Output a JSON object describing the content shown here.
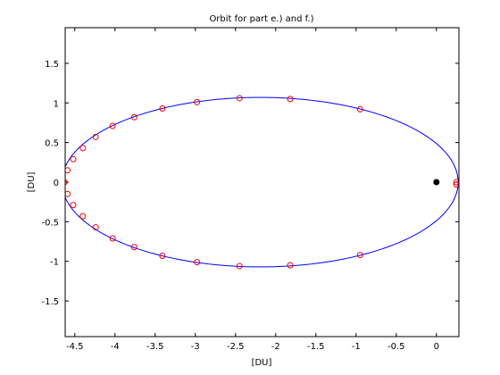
{
  "chart_data": {
    "type": "line",
    "title": "Orbit for part e.) and f.)",
    "xlabel": "[DU]",
    "ylabel": "[DU]",
    "xlim": [
      -4.62,
      0.28
    ],
    "ylim": [
      -1.95,
      1.95
    ],
    "xticks": [
      -4.5,
      -4,
      -3.5,
      -3,
      -2.5,
      -2,
      -1.5,
      -1,
      -0.5,
      0
    ],
    "xtick_labels": [
      "-4.5",
      "-4",
      "-3.5",
      "-3",
      "-2.5",
      "-2",
      "-1.5",
      "-1",
      "-0.5",
      "0"
    ],
    "yticks": [
      -1.5,
      -1,
      -0.5,
      0,
      0.5,
      1,
      1.5
    ],
    "ytick_labels": [
      "-1.5",
      "-1",
      "-0.5",
      "0",
      "0.5",
      "1",
      "1.5"
    ],
    "grid": false,
    "legend": "none",
    "series": [
      {
        "kind": "line",
        "color": "#0000ff",
        "ellipse": {
          "center_x": -2.195,
          "center_y": 0,
          "semi_major": 2.465,
          "semi_minor": 1.07
        }
      },
      {
        "kind": "markers",
        "marker": "circle",
        "color": "#ff0000",
        "x": [
          0.248,
          -0.95,
          -1.82,
          -2.45,
          -2.98,
          -3.41,
          -3.76,
          -4.03,
          -4.24,
          -4.4,
          -4.52,
          -4.59,
          -4.63,
          -4.63,
          -4.59,
          -4.52,
          -4.4,
          -4.24,
          -4.03,
          -3.76,
          -3.41,
          -2.98,
          -2.45,
          -1.82,
          -0.95,
          0.248
        ],
        "y": [
          0.0,
          0.92,
          1.05,
          1.06,
          1.01,
          0.93,
          0.82,
          0.71,
          0.57,
          0.43,
          0.29,
          0.15,
          0.0,
          -0.0,
          -0.15,
          -0.29,
          -0.43,
          -0.57,
          -0.71,
          -0.82,
          -0.93,
          -1.01,
          -1.06,
          -1.05,
          -0.92,
          -0.03
        ]
      },
      {
        "kind": "point",
        "marker": "filled-circle",
        "color": "#000000",
        "x": [
          0
        ],
        "y": [
          0
        ]
      }
    ]
  }
}
